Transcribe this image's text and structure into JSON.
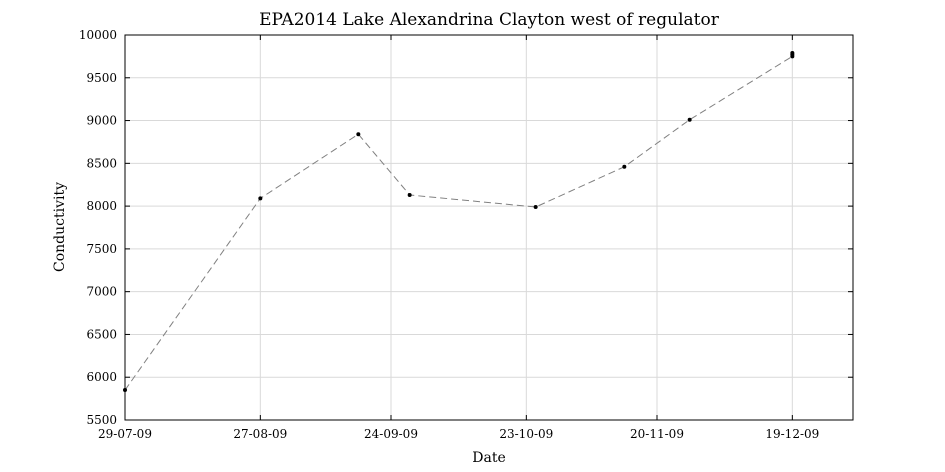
{
  "chart_data": {
    "type": "line",
    "title": "EPA2014 Lake Alexandrina Clayton west of regulator",
    "xlabel": "Date",
    "ylabel": "Conductivity",
    "x_tick_labels": [
      "29-07-09",
      "27-08-09",
      "24-09-09",
      "23-10-09",
      "20-11-09",
      "19-12-09"
    ],
    "x_tick_dates": [
      "2009-07-29",
      "2009-08-27",
      "2009-09-24",
      "2009-10-23",
      "2009-11-20",
      "2009-12-19"
    ],
    "xlim": [
      "2009-07-29",
      "2010-01-01"
    ],
    "y_tick_labels": [
      "5500",
      "6000",
      "6500",
      "7000",
      "7500",
      "8000",
      "8500",
      "9000",
      "9500",
      "10000"
    ],
    "ylim": [
      5500,
      10000
    ],
    "grid": true,
    "line_style": "dashed",
    "line_color": "#808080",
    "marker_color": "#000000",
    "series": [
      {
        "x": [
          "2009-07-29",
          "2009-08-27",
          "2009-09-17",
          "2009-09-28",
          "2009-10-25",
          "2009-11-13",
          "2009-11-27",
          "2009-12-19"
        ],
        "y": [
          5850,
          8090,
          8840,
          8130,
          7990,
          8460,
          9010,
          9750
        ]
      }
    ],
    "extra_points": [
      {
        "x": "2009-12-19",
        "y": 9790
      },
      {
        "x": "2009-12-19",
        "y": 9770
      }
    ]
  }
}
